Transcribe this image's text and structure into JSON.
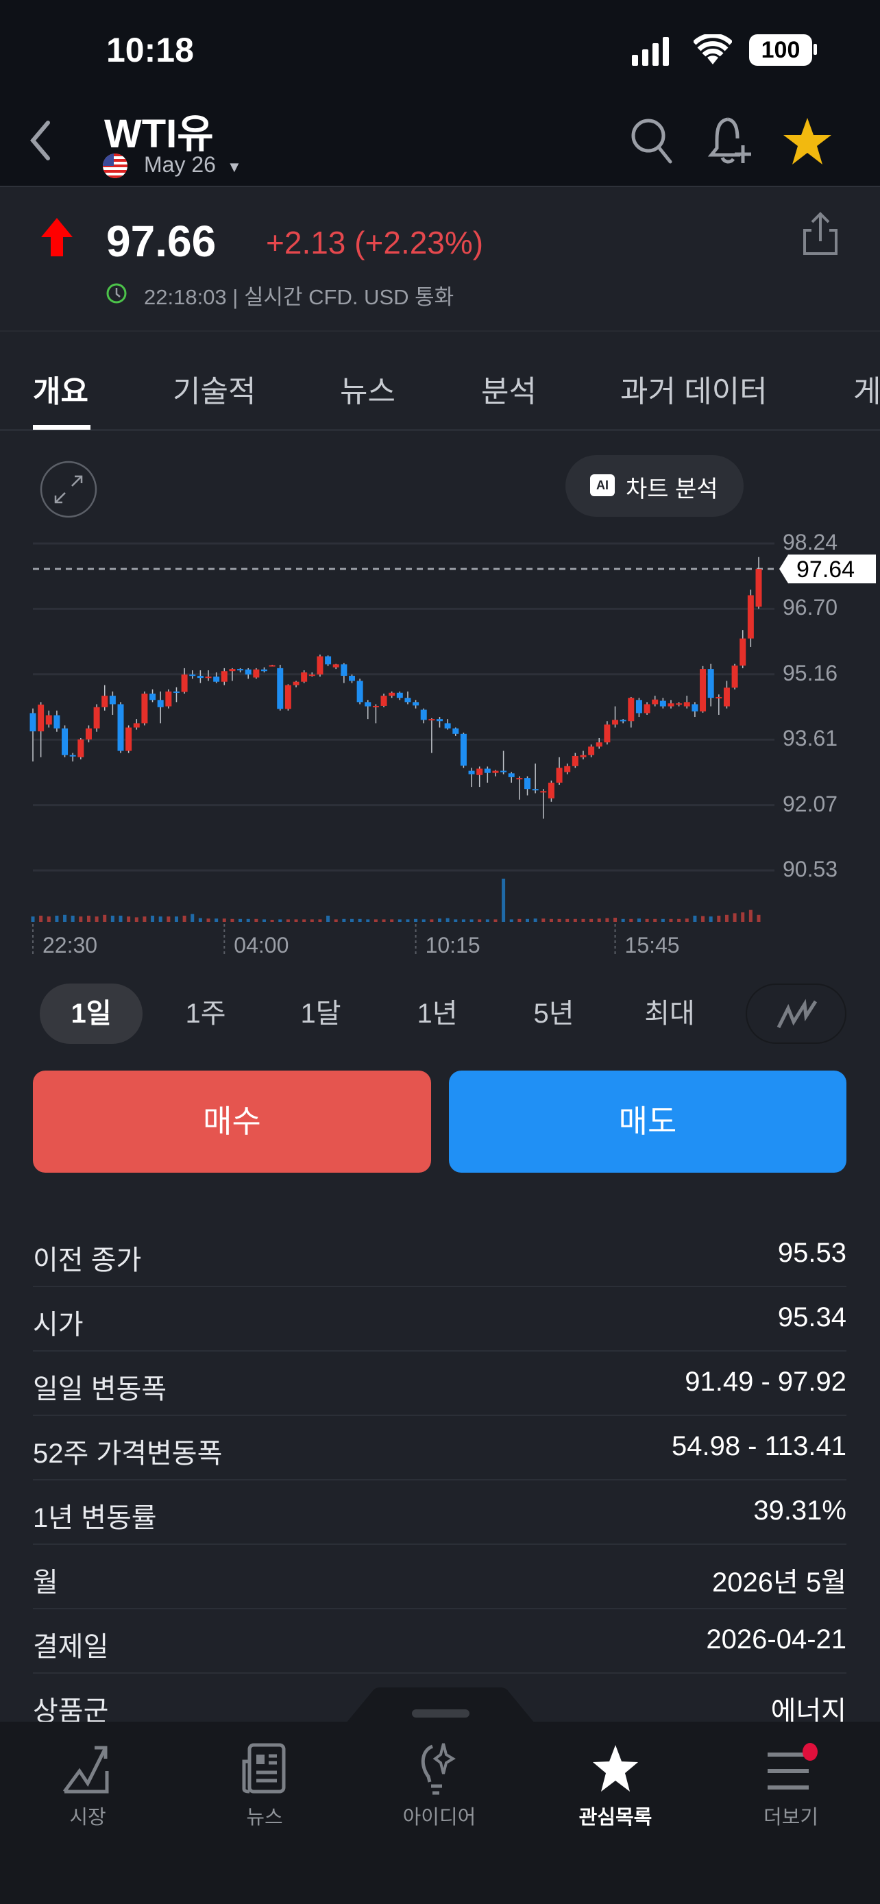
{
  "status": {
    "time": "10:18",
    "battery": "100"
  },
  "header": {
    "title": "WTI유",
    "contract": "May 26",
    "icons": [
      "back-chevron-icon",
      "search-icon",
      "bell-plus-icon",
      "star-icon"
    ]
  },
  "quote": {
    "price": "97.66",
    "change": "+2.13 (+2.23%)",
    "timestamp": "22:18:03 | 실시간 CFD. USD 통화",
    "direction": "up",
    "up_color": "#e5302a",
    "down_color": "#1e8ef2"
  },
  "tabs": [
    {
      "label": "개요",
      "active": true
    },
    {
      "label": "기술적"
    },
    {
      "label": "뉴스"
    },
    {
      "label": "분석"
    },
    {
      "label": "과거 데이터"
    },
    {
      "label": "게"
    }
  ],
  "chart_toolbar": {
    "ai_label": "차트 분석"
  },
  "chart_data": {
    "type": "candlestick",
    "y_ticks": [
      "98.24",
      "96.70",
      "95.16",
      "93.61",
      "92.07",
      "90.53"
    ],
    "ylim": [
      90.53,
      98.24
    ],
    "x_ticks": [
      "22:30",
      "04:00",
      "10:15",
      "15:45"
    ],
    "x_tick_index": [
      0,
      24,
      48,
      73
    ],
    "last_price_label": "97.64",
    "last_price": 97.64,
    "grid": true,
    "ohlc": [
      [
        94.24,
        94.35,
        93.1,
        93.81
      ],
      [
        93.81,
        94.5,
        93.2,
        94.44
      ],
      [
        93.97,
        94.3,
        93.9,
        94.19
      ],
      [
        94.19,
        94.3,
        93.8,
        93.88
      ],
      [
        93.88,
        93.95,
        93.2,
        93.25
      ],
      [
        93.25,
        93.3,
        93.1,
        93.22
      ],
      [
        93.2,
        93.65,
        93.15,
        93.62
      ],
      [
        93.62,
        93.95,
        93.55,
        93.88
      ],
      [
        93.88,
        94.45,
        93.8,
        94.38
      ],
      [
        94.38,
        94.9,
        94.3,
        94.65
      ],
      [
        94.65,
        94.75,
        94.2,
        94.45
      ],
      [
        94.45,
        94.5,
        93.3,
        93.35
      ],
      [
        93.35,
        93.95,
        93.3,
        93.9
      ],
      [
        93.9,
        94.1,
        93.85,
        94.0
      ],
      [
        94.0,
        94.75,
        93.95,
        94.7
      ],
      [
        94.7,
        94.8,
        94.5,
        94.55
      ],
      [
        94.55,
        94.75,
        94.0,
        94.38
      ],
      [
        94.4,
        94.8,
        94.35,
        94.75
      ],
      [
        94.75,
        94.85,
        94.5,
        94.74
      ],
      [
        94.74,
        95.3,
        94.7,
        95.15
      ],
      [
        95.15,
        95.25,
        95.05,
        95.12
      ],
      [
        95.12,
        95.25,
        94.95,
        95.07
      ],
      [
        95.07,
        95.25,
        95.0,
        95.1
      ],
      [
        95.1,
        95.2,
        94.95,
        94.98
      ],
      [
        94.98,
        95.3,
        94.9,
        95.23
      ],
      [
        95.23,
        95.3,
        95.0,
        95.28
      ],
      [
        95.28,
        95.3,
        95.2,
        95.27
      ],
      [
        95.27,
        95.3,
        95.05,
        95.15
      ],
      [
        95.08,
        95.3,
        95.05,
        95.27
      ],
      [
        95.27,
        95.32,
        95.2,
        95.23
      ],
      [
        95.37,
        95.38,
        95.36,
        95.37
      ],
      [
        95.3,
        95.38,
        94.3,
        94.34
      ],
      [
        94.34,
        94.92,
        94.3,
        94.9
      ],
      [
        94.9,
        95.0,
        94.85,
        94.98
      ],
      [
        94.98,
        95.25,
        94.95,
        95.2
      ],
      [
        95.12,
        95.2,
        95.1,
        95.15
      ],
      [
        95.15,
        95.62,
        95.1,
        95.58
      ],
      [
        95.58,
        95.6,
        95.35,
        95.39
      ],
      [
        95.32,
        95.4,
        95.28,
        95.39
      ],
      [
        95.39,
        95.42,
        94.95,
        95.12
      ],
      [
        95.12,
        95.15,
        94.95,
        95.0
      ],
      [
        95.0,
        95.05,
        94.45,
        94.5
      ],
      [
        94.5,
        94.55,
        94.1,
        94.4
      ],
      [
        94.4,
        94.45,
        94.0,
        94.41
      ],
      [
        94.41,
        94.7,
        94.38,
        94.65
      ],
      [
        94.65,
        94.75,
        94.6,
        94.72
      ],
      [
        94.72,
        94.75,
        94.55,
        94.6
      ],
      [
        94.6,
        94.75,
        94.45,
        94.5
      ],
      [
        94.5,
        94.55,
        94.35,
        94.42
      ],
      [
        94.32,
        94.35,
        94.0,
        94.08
      ],
      [
        94.08,
        94.12,
        93.3,
        94.1
      ],
      [
        94.1,
        94.15,
        93.9,
        94.05
      ],
      [
        94.0,
        94.1,
        93.85,
        93.88
      ],
      [
        93.88,
        93.9,
        93.7,
        93.75
      ],
      [
        93.75,
        93.78,
        92.95,
        93.0
      ],
      [
        92.88,
        92.95,
        92.5,
        92.8
      ],
      [
        92.78,
        92.98,
        92.5,
        92.93
      ],
      [
        92.93,
        92.98,
        92.6,
        92.83
      ],
      [
        92.83,
        92.9,
        92.75,
        92.88
      ],
      [
        92.88,
        93.35,
        92.8,
        92.87
      ],
      [
        92.82,
        92.85,
        92.6,
        92.73
      ],
      [
        92.68,
        92.75,
        92.2,
        92.71
      ],
      [
        92.71,
        92.75,
        92.3,
        92.45
      ],
      [
        92.45,
        93.05,
        92.35,
        92.42
      ],
      [
        92.4,
        92.45,
        91.75,
        92.4
      ],
      [
        92.23,
        92.65,
        92.15,
        92.6
      ],
      [
        92.6,
        93.2,
        92.55,
        92.95
      ],
      [
        92.85,
        93.05,
        92.8,
        92.99
      ],
      [
        92.99,
        93.3,
        92.95,
        93.23
      ],
      [
        93.2,
        93.35,
        93.15,
        93.25
      ],
      [
        93.25,
        93.5,
        93.2,
        93.45
      ],
      [
        93.45,
        93.65,
        93.4,
        93.55
      ],
      [
        93.55,
        94.05,
        93.5,
        93.97
      ],
      [
        93.97,
        94.4,
        93.9,
        94.08
      ],
      [
        94.08,
        94.1,
        94.0,
        94.05
      ],
      [
        94.05,
        94.62,
        93.9,
        94.6
      ],
      [
        94.55,
        94.6,
        94.15,
        94.24
      ],
      [
        94.24,
        94.5,
        94.2,
        94.45
      ],
      [
        94.45,
        94.65,
        94.4,
        94.56
      ],
      [
        94.53,
        94.6,
        94.35,
        94.4
      ],
      [
        94.4,
        94.55,
        94.35,
        94.47
      ],
      [
        94.47,
        94.5,
        94.4,
        94.47
      ],
      [
        94.4,
        94.65,
        94.35,
        94.5
      ],
      [
        94.45,
        94.5,
        94.15,
        94.28
      ],
      [
        94.28,
        95.35,
        94.25,
        95.28
      ],
      [
        95.28,
        95.4,
        94.4,
        94.6
      ],
      [
        94.6,
        94.68,
        94.2,
        94.62
      ],
      [
        94.4,
        95.0,
        94.35,
        94.84
      ],
      [
        94.84,
        95.4,
        94.8,
        95.36
      ],
      [
        95.36,
        96.2,
        95.3,
        96.0
      ],
      [
        96.0,
        97.15,
        95.8,
        97.02
      ],
      [
        96.75,
        97.92,
        96.7,
        97.64
      ]
    ],
    "volume": [
      8,
      10,
      8,
      10,
      12,
      10,
      8,
      10,
      8,
      12,
      10,
      10,
      8,
      6,
      8,
      10,
      8,
      8,
      8,
      10,
      14,
      4,
      3,
      3,
      3,
      2,
      2,
      2,
      2,
      1,
      0,
      1,
      1,
      1,
      1,
      1,
      1,
      10,
      1,
      2,
      2,
      2,
      1,
      1,
      1,
      1,
      1,
      1,
      2,
      1,
      1,
      3,
      4,
      1,
      1,
      1,
      1,
      1,
      1,
      100,
      1,
      2,
      2,
      3,
      3,
      2,
      2,
      2,
      2,
      2,
      2,
      3,
      4,
      5,
      2,
      2,
      3,
      2,
      2,
      2,
      2,
      2,
      3,
      10,
      9,
      8,
      10,
      12,
      16,
      18,
      24,
      12
    ]
  },
  "timeframes": [
    {
      "label": "1일",
      "active": true
    },
    {
      "label": "1주"
    },
    {
      "label": "1달"
    },
    {
      "label": "1년"
    },
    {
      "label": "5년"
    },
    {
      "label": "최대"
    }
  ],
  "actions": {
    "buy": "매수",
    "sell": "매도",
    "buy_color": "#e5554f",
    "sell_color": "#2090f5"
  },
  "stats": [
    {
      "label": "이전 종가",
      "value": "95.53"
    },
    {
      "label": "시가",
      "value": "95.34"
    },
    {
      "label": "일일 변동폭",
      "value": "91.49 - 97.92"
    },
    {
      "label": "52주 가격변동폭",
      "value": "54.98 - 113.41"
    },
    {
      "label": "1년 변동률",
      "value": "39.31%"
    },
    {
      "label": "월",
      "value": "2026년 5월"
    },
    {
      "label": "결제일",
      "value": "2026-04-21"
    },
    {
      "label": "상품군",
      "value": "에너지"
    }
  ],
  "nav": [
    {
      "label": "시장",
      "icon": "chart-trend-icon"
    },
    {
      "label": "뉴스",
      "icon": "newspaper-icon"
    },
    {
      "label": "아이디어",
      "icon": "lightbulb-icon"
    },
    {
      "label": "관심목록",
      "icon": "star-icon",
      "active": true
    },
    {
      "label": "더보기",
      "icon": "menu-icon",
      "badge": true
    }
  ]
}
